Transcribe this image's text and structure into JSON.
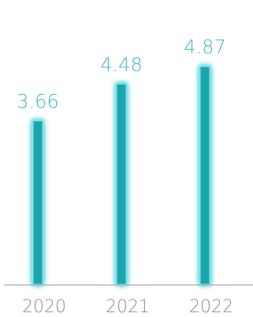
{
  "chart_data": {
    "type": "bar",
    "categories": [
      "2020",
      "2021",
      "2022"
    ],
    "values": [
      3.66,
      4.48,
      4.87
    ],
    "data_labels": [
      "3.66",
      "4.48",
      "4.87"
    ],
    "title": "",
    "xlabel": "",
    "ylabel": "",
    "ylim": [
      0,
      5.2
    ],
    "grid": false,
    "legend": "none",
    "colors": {
      "bar": "#1fa5ad",
      "glow": "#7fe9ee",
      "value_label": "#45b7c3",
      "tick_label": "#8e8e8e",
      "axis": "#9a9a9a"
    }
  }
}
